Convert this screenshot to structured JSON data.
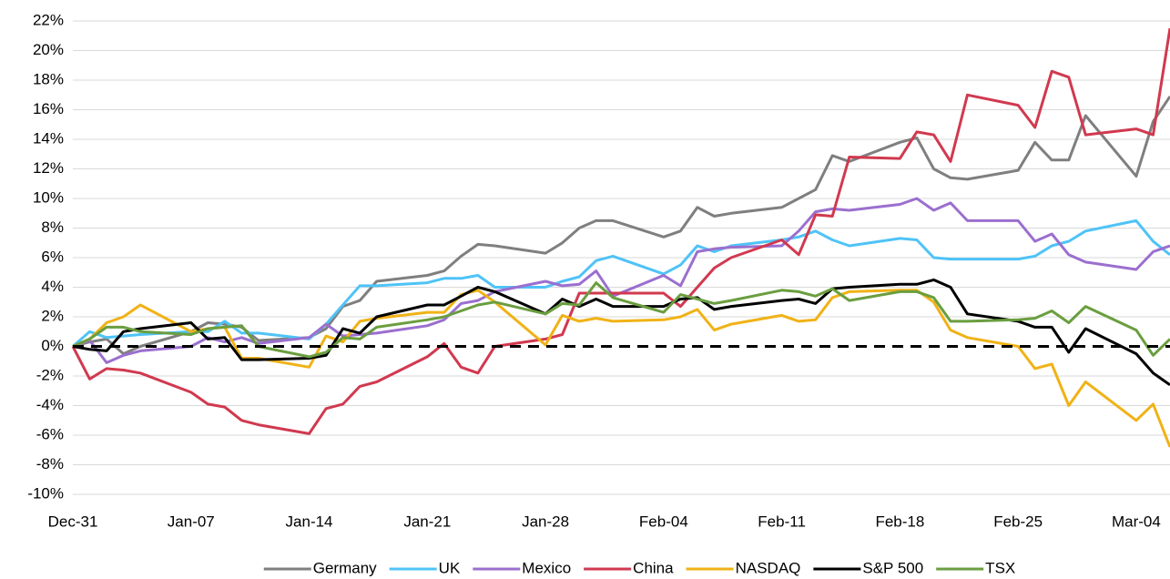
{
  "chart_data": {
    "type": "line",
    "x": [
      0,
      1,
      2,
      3,
      4,
      7,
      8,
      9,
      10,
      11,
      14,
      15,
      16,
      17,
      18,
      21,
      22,
      23,
      24,
      25,
      28,
      29,
      30,
      31,
      32,
      35,
      36,
      37,
      38,
      39,
      42,
      43,
      44,
      45,
      46,
      49,
      50,
      51,
      52,
      53,
      56,
      57,
      58,
      59,
      60,
      63,
      64,
      65
    ],
    "xlim": [
      0,
      65
    ],
    "xticks": [
      {
        "value": 0,
        "label": "Dec-31"
      },
      {
        "value": 7,
        "label": "Jan-07"
      },
      {
        "value": 14,
        "label": "Jan-14"
      },
      {
        "value": 21,
        "label": "Jan-21"
      },
      {
        "value": 28,
        "label": "Jan-28"
      },
      {
        "value": 35,
        "label": "Feb-04"
      },
      {
        "value": 42,
        "label": "Feb-11"
      },
      {
        "value": 49,
        "label": "Feb-18"
      },
      {
        "value": 56,
        "label": "Feb-25"
      },
      {
        "value": 63,
        "label": "Mar-04"
      }
    ],
    "ylim": [
      -10,
      22
    ],
    "yticks": [
      {
        "value": -10,
        "label": "-10%"
      },
      {
        "value": -8,
        "label": "-8%"
      },
      {
        "value": -6,
        "label": "-6%"
      },
      {
        "value": -4,
        "label": "-4%"
      },
      {
        "value": -2,
        "label": "-2%"
      },
      {
        "value": 0,
        "label": "0%"
      },
      {
        "value": 2,
        "label": "2%"
      },
      {
        "value": 4,
        "label": "4%"
      },
      {
        "value": 6,
        "label": "6%"
      },
      {
        "value": 8,
        "label": "8%"
      },
      {
        "value": 10,
        "label": "10%"
      },
      {
        "value": 12,
        "label": "12%"
      },
      {
        "value": 14,
        "label": "14%"
      },
      {
        "value": 16,
        "label": "16%"
      },
      {
        "value": 18,
        "label": "18%"
      },
      {
        "value": 20,
        "label": "20%"
      },
      {
        "value": 22,
        "label": "22%"
      }
    ],
    "grid": true,
    "legend": "bottom",
    "series": [
      {
        "name": "Germany",
        "color": "#7f7f7f",
        "values": [
          0,
          0.3,
          0.5,
          -0.5,
          0,
          1.0,
          1.6,
          1.5,
          1.3,
          0.4,
          0.6,
          1.2,
          2.7,
          3.1,
          4.4,
          4.8,
          5.1,
          6.1,
          6.9,
          6.8,
          6.3,
          7.0,
          8.0,
          8.5,
          8.5,
          7.4,
          7.8,
          9.4,
          8.8,
          9.0,
          9.4,
          10.0,
          10.6,
          12.9,
          12.5,
          13.8,
          14.1,
          12.0,
          11.4,
          11.3,
          11.9,
          13.8,
          12.6,
          12.6,
          15.6,
          11.5,
          15.2,
          16.9
        ]
      },
      {
        "name": "UK",
        "color": "#4fc3f7",
        "values": [
          0,
          1.0,
          0.6,
          0.7,
          0.8,
          1.0,
          1.0,
          1.7,
          0.9,
          0.9,
          0.5,
          1.5,
          2.8,
          4.1,
          4.1,
          4.3,
          4.6,
          4.6,
          4.8,
          4.0,
          4.0,
          4.4,
          4.7,
          5.8,
          6.1,
          4.9,
          5.5,
          6.8,
          6.4,
          6.8,
          7.2,
          7.4,
          7.8,
          7.2,
          6.8,
          7.3,
          7.2,
          6.0,
          5.9,
          5.9,
          5.9,
          6.1,
          6.8,
          7.1,
          7.8,
          8.5,
          7.1,
          6.2
        ]
      },
      {
        "name": "Mexico",
        "color": "#9b6fcf",
        "values": [
          0,
          0.4,
          -1.1,
          -0.6,
          -0.3,
          0,
          0.6,
          0.3,
          0.6,
          0.2,
          0.6,
          1.5,
          0.7,
          0.8,
          0.9,
          1.4,
          1.8,
          2.9,
          3.1,
          3.7,
          4.4,
          4.1,
          4.2,
          5.1,
          3.4,
          4.8,
          4.1,
          6.4,
          6.6,
          6.7,
          6.8,
          7.8,
          9.1,
          9.3,
          9.2,
          9.6,
          10.0,
          9.2,
          9.7,
          8.5,
          8.5,
          7.1,
          7.6,
          6.2,
          5.7,
          5.2,
          6.4,
          6.8
        ]
      },
      {
        "name": "China",
        "color": "#d1394f",
        "values": [
          0,
          -2.2,
          -1.5,
          -1.6,
          -1.8,
          -3.1,
          -3.9,
          -4.1,
          -5.0,
          -5.3,
          -5.9,
          -4.2,
          -3.9,
          -2.7,
          -2.4,
          -0.7,
          0.2,
          -1.4,
          -1.8,
          0.0,
          0.5,
          0.8,
          3.6,
          3.6,
          3.6,
          3.6,
          2.7,
          4.0,
          5.3,
          6.0,
          7.2,
          6.2,
          8.9,
          8.8,
          12.8,
          12.7,
          14.5,
          14.3,
          12.5,
          17.0,
          16.3,
          14.8,
          18.6,
          18.2,
          14.3,
          14.7,
          14.3,
          21.5
        ]
      },
      {
        "name": "NASDAQ",
        "color": "#f0b216",
        "values": [
          0,
          0.5,
          1.6,
          2.0,
          2.8,
          1.0,
          1.2,
          1.3,
          -0.8,
          -0.8,
          -1.4,
          0.7,
          0.3,
          1.7,
          1.9,
          2.3,
          2.3,
          3.5,
          3.8,
          3.0,
          0.1,
          2.1,
          1.7,
          1.9,
          1.7,
          1.8,
          2.0,
          2.5,
          1.1,
          1.5,
          2.1,
          1.7,
          1.8,
          3.3,
          3.7,
          3.8,
          3.8,
          3.0,
          1.1,
          0.6,
          0.0,
          -1.5,
          -1.2,
          -4.0,
          -2.4,
          -5.0,
          -3.9,
          -6.8
        ]
      },
      {
        "name": "S&P 500",
        "color": "#000000",
        "values": [
          0,
          -0.2,
          -0.3,
          1.0,
          1.2,
          1.6,
          0.5,
          0.6,
          -0.9,
          -0.9,
          -0.8,
          -0.6,
          1.2,
          0.9,
          2.0,
          2.8,
          2.8,
          3.4,
          4.0,
          3.7,
          2.2,
          3.2,
          2.7,
          3.2,
          2.7,
          2.7,
          3.2,
          3.3,
          2.5,
          2.7,
          3.1,
          3.2,
          2.9,
          3.9,
          4.0,
          4.2,
          4.2,
          4.5,
          4.0,
          2.2,
          1.7,
          1.3,
          1.3,
          -0.4,
          1.2,
          -0.5,
          -1.8,
          -2.6
        ]
      },
      {
        "name": "TSX",
        "color": "#6a9e3f",
        "values": [
          0,
          0.5,
          1.3,
          1.3,
          1.0,
          0.8,
          1.2,
          1.3,
          1.4,
          0.0,
          -0.7,
          -0.4,
          0.6,
          0.5,
          1.3,
          1.8,
          2.0,
          2.4,
          2.8,
          3.0,
          2.2,
          2.9,
          2.8,
          4.3,
          3.3,
          2.3,
          3.5,
          3.2,
          2.9,
          3.1,
          3.8,
          3.7,
          3.4,
          3.9,
          3.1,
          3.7,
          3.7,
          3.3,
          1.7,
          1.7,
          1.8,
          1.9,
          2.4,
          1.6,
          2.7,
          1.1,
          -0.6,
          0.5
        ]
      }
    ]
  }
}
